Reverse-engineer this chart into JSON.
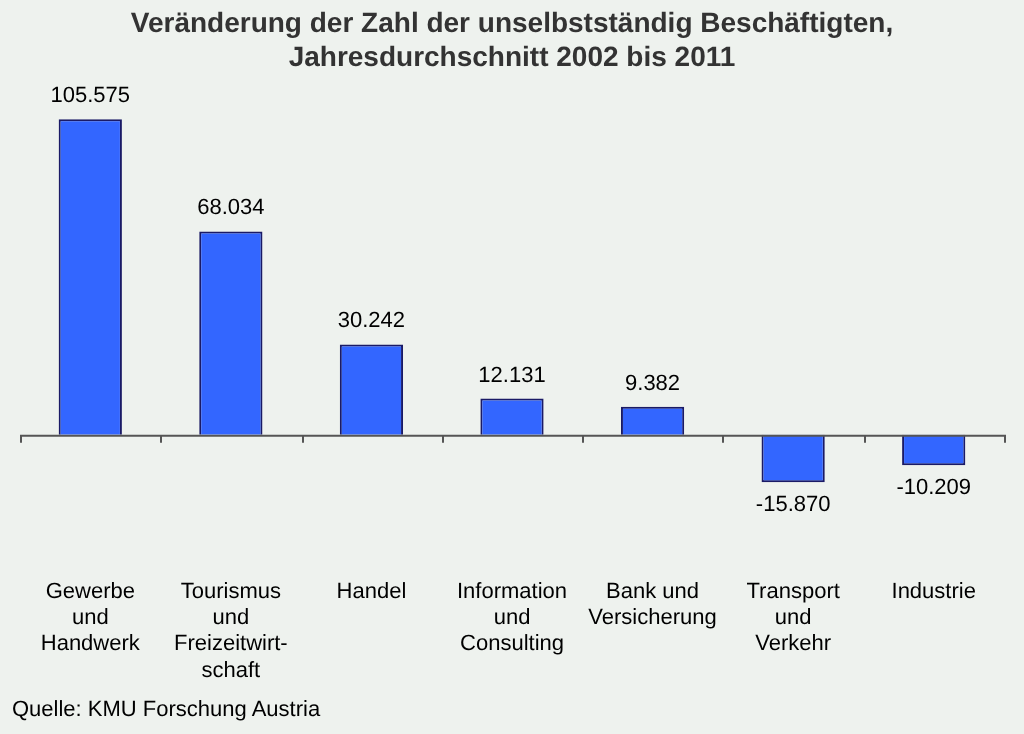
{
  "chart_data": {
    "type": "bar",
    "title": "Veränderung der Zahl der unselbstständig Beschäftigten,\nJahresdurchschnitt 2002 bis 2011",
    "categories": [
      "Gewerbe\nund\nHandwerk",
      "Tourismus\nund\nFreizeitwirt-\nschaft",
      "Handel",
      "Information\nund\nConsulting",
      "Bank und\nVersicherung",
      "Transport\nund\nVerkehr",
      "Industrie"
    ],
    "values": [
      105575,
      68034,
      30242,
      12131,
      9382,
      -15870,
      -10209
    ],
    "value_labels": [
      "105.575",
      "68.034",
      "30.242",
      "12.131",
      "9.382",
      "-15.870",
      "-10.209"
    ],
    "color": "#3366ff",
    "annotations": [
      "Quelle: KMU Forschung Austria"
    ]
  }
}
